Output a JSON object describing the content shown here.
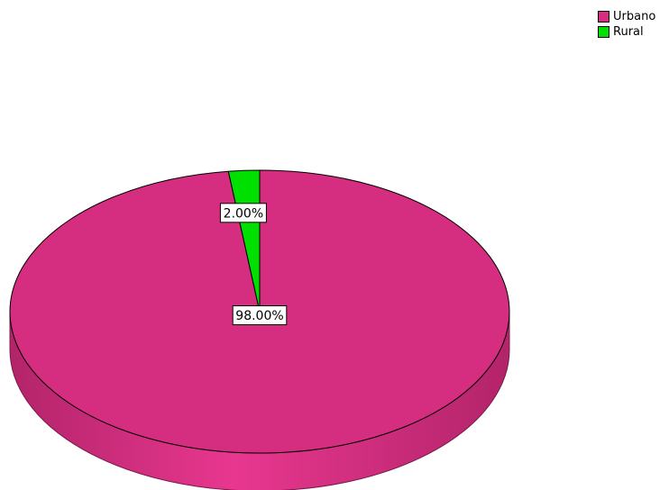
{
  "chart_data": {
    "type": "pie",
    "style": "3d",
    "categories": [
      "Urbano",
      "Rural"
    ],
    "values": [
      98.0,
      2.0
    ],
    "labels": [
      "98.00%",
      "2.00%"
    ],
    "colors": [
      "#d52e80",
      "#00e000"
    ],
    "legend": {
      "position": "top-right",
      "entries": [
        "Urbano",
        "Rural"
      ]
    }
  }
}
